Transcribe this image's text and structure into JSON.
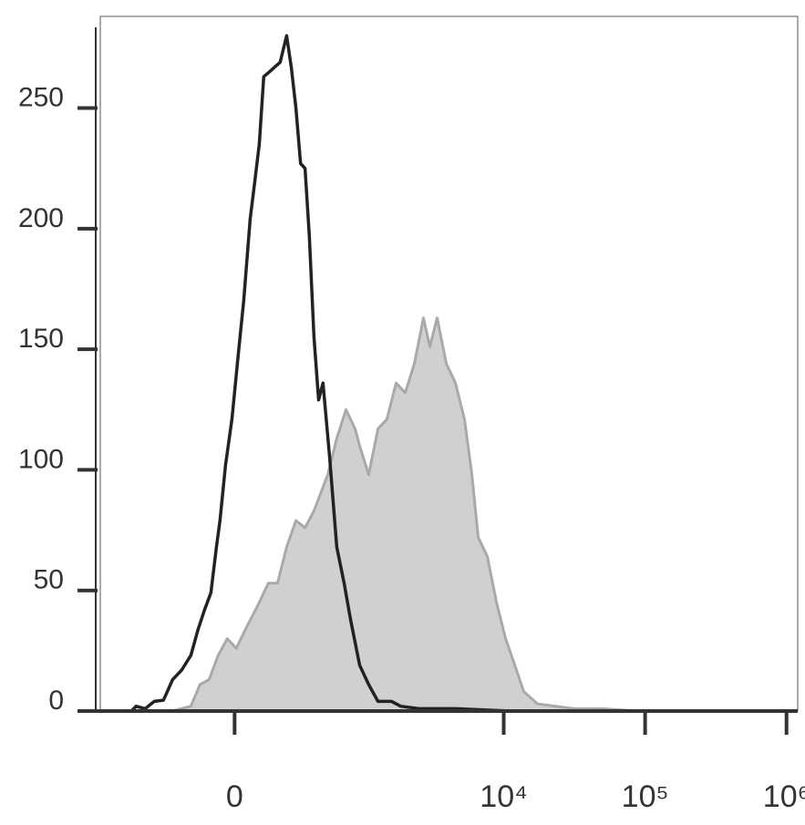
{
  "chart_data": {
    "type": "line",
    "xscale": "biexponential",
    "xlim": [
      -1100,
      1200000
    ],
    "ylim": [
      0,
      288
    ],
    "xticks": [
      0,
      {
        "value": 10000,
        "label": "10⁴"
      },
      {
        "value": 100000,
        "label": "10⁵"
      },
      {
        "value": 1000000,
        "label": "10⁶"
      }
    ],
    "yticks": [
      0,
      50,
      100,
      150,
      200,
      250
    ],
    "series": [
      {
        "color": "#d0d0d0",
        "stroke": "#a9a9ab",
        "filled": true,
        "x": [
          -298,
          -194,
          -149,
          -107,
          -68,
          -30,
          7,
          45,
          103,
          144,
          189,
          238,
          293,
          354,
          421,
          542,
          636,
          746,
          871,
          941,
          1096,
          1278,
          1483,
          1725,
          2005,
          2328,
          2703,
          3000,
          3380,
          3923,
          4553,
          5280,
          5948,
          6600,
          7663,
          8888,
          10310,
          11975,
          13880,
          17350,
          23350,
          31430,
          49100,
          89000,
          1112000
        ],
        "values": [
          0,
          2,
          11,
          13,
          23,
          30,
          26,
          34,
          45,
          53,
          53,
          68,
          79,
          76,
          83,
          98,
          113,
          125,
          117,
          110,
          98,
          117,
          121,
          136,
          132,
          144,
          163,
          151,
          163,
          144,
          136,
          121,
          98,
          72,
          64,
          45,
          30,
          19,
          8,
          3,
          2,
          1,
          1,
          0,
          0
        ]
      },
      {
        "color": "#222222",
        "filled": false,
        "x": [
          -647,
          -597,
          -507,
          -429,
          -359,
          -298,
          -243,
          -194,
          -157,
          -127,
          -99,
          -75,
          -60,
          -37,
          -11,
          15,
          37,
          64,
          83,
          103,
          123,
          149,
          175,
          203,
          238,
          265,
          293,
          323,
          354,
          385,
          421,
          459,
          498,
          559,
          636,
          723,
          806,
          941,
          1096,
          1278,
          1600,
          1860,
          2508,
          4553,
          11100,
          1112000
        ],
        "values": [
          0,
          2,
          1,
          4,
          4.5,
          13,
          17,
          23,
          34,
          42,
          49,
          68,
          79,
          102,
          121,
          148,
          170,
          204,
          219,
          235,
          263,
          265,
          267,
          269,
          280,
          267,
          250,
          227,
          225,
          197,
          155,
          129,
          136,
          106,
          68,
          53,
          38,
          19,
          11,
          4,
          4,
          2,
          1,
          1,
          0,
          0
        ]
      }
    ]
  }
}
